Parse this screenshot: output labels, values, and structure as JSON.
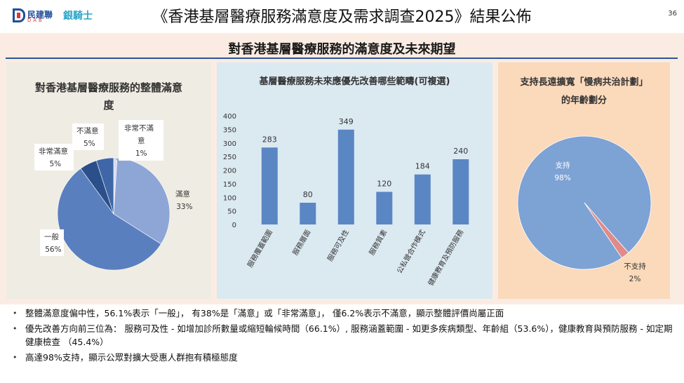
{
  "header": {
    "logo_dab_zh": "民建聯",
    "logo_dab_en": "DAB",
    "logo_yq_zh": "銀騎士",
    "title": "《香港基層醫療服務滿意度及需求調查2025》結果公佈",
    "page_number": "36"
  },
  "subtitle": "對香港基層醫療服務的滿意度及未來期望",
  "chart_data": [
    {
      "type": "pie",
      "title": "對香港基層醫療服務的整體滿意度",
      "slices": [
        {
          "label": "非常不滿意",
          "percent_label": "1%",
          "value": 1,
          "color": "#d5ddee"
        },
        {
          "label": "滿意",
          "percent_label": "33%",
          "value": 33,
          "color": "#8ea6d6"
        },
        {
          "label": "一般",
          "percent_label": "56%",
          "value": 56,
          "color": "#5a7fbf"
        },
        {
          "label": "非常滿意",
          "percent_label": "5%",
          "value": 5,
          "color": "#2b4f8a"
        },
        {
          "label": "不滿意",
          "percent_label": "5%",
          "value": 5,
          "color": "#3f67a8"
        }
      ]
    },
    {
      "type": "bar",
      "title": "基層醫療服務未來應優先改善哪些範疇(可複選)",
      "categories": [
        "服務覆蓋範圍",
        "服務層面",
        "服務可及性",
        "服務質素",
        "公私營合作模式",
        "健康教育及預防服務"
      ],
      "values": [
        283,
        80,
        349,
        120,
        184,
        240
      ],
      "ylim": [
        0,
        400
      ],
      "yticks": [
        "0",
        "50",
        "100",
        "150",
        "200",
        "250",
        "300",
        "350",
        "400"
      ],
      "color": "#5b86c4"
    },
    {
      "type": "pie",
      "title": "支持長遠擴寬「慢病共治計劃」的年齡劃分",
      "slices": [
        {
          "label": "支持",
          "percent_label": "98%",
          "value": 98,
          "color": "#7da2d4"
        },
        {
          "label": "不支持",
          "percent_label": "2%",
          "value": 2,
          "color": "#e08a8a"
        }
      ]
    }
  ],
  "bullets": [
    "整體滿意度偏中性，56.1%表示「一般」，  有38%是「滿意」或「非常滿意」，  僅6.2%表示不滿意，顯示整體評價尚屬正面",
    "優先改善方向前三位為：  服務可及性 - 如增加診所數量或縮短輪候時間（66.1%）, 服務涵蓋範圍 - 如更多疾病類型、年齡組（53.6%），健康教育與預防服務 - 如定期健康檢查 （45.4%）",
    "高達98%支持，顯示公眾對擴大受惠人群抱有積極態度"
  ],
  "bullet_marker": "•"
}
